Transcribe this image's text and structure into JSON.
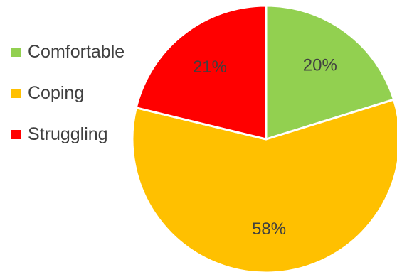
{
  "chart_data": {
    "type": "pie",
    "title": "",
    "categories": [
      "Comfortable",
      "Coping",
      "Struggling"
    ],
    "values": [
      20,
      58,
      21
    ],
    "labels": [
      "20%",
      "58%",
      "21%"
    ],
    "colors": [
      "#92d050",
      "#ffc000",
      "#ff0000"
    ],
    "legend": "left",
    "start_angle_deg": 0,
    "direction": "clockwise"
  }
}
